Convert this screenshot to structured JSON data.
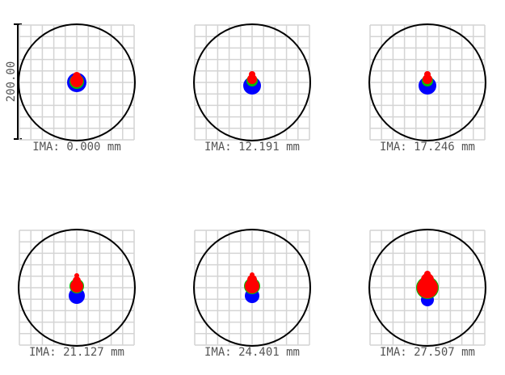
{
  "scale_label": "200.00",
  "colors": {
    "grid": "#d4d4d4",
    "circle": "#000000",
    "label": "#555555",
    "scale_bar": "#000000",
    "wavelength_1": "#0000ff",
    "wavelength_2": "#00c000",
    "wavelength_3": "#ff0000"
  },
  "spots": [
    {
      "label": "IMA: 0.000 mm"
    },
    {
      "label": "IMA: 12.191 mm"
    },
    {
      "label": "IMA: 17.246 mm"
    },
    {
      "label": "IMA: 21.127 mm"
    },
    {
      "label": "IMA: 24.401 mm"
    },
    {
      "label": "IMA: 27.507 mm"
    }
  ]
}
